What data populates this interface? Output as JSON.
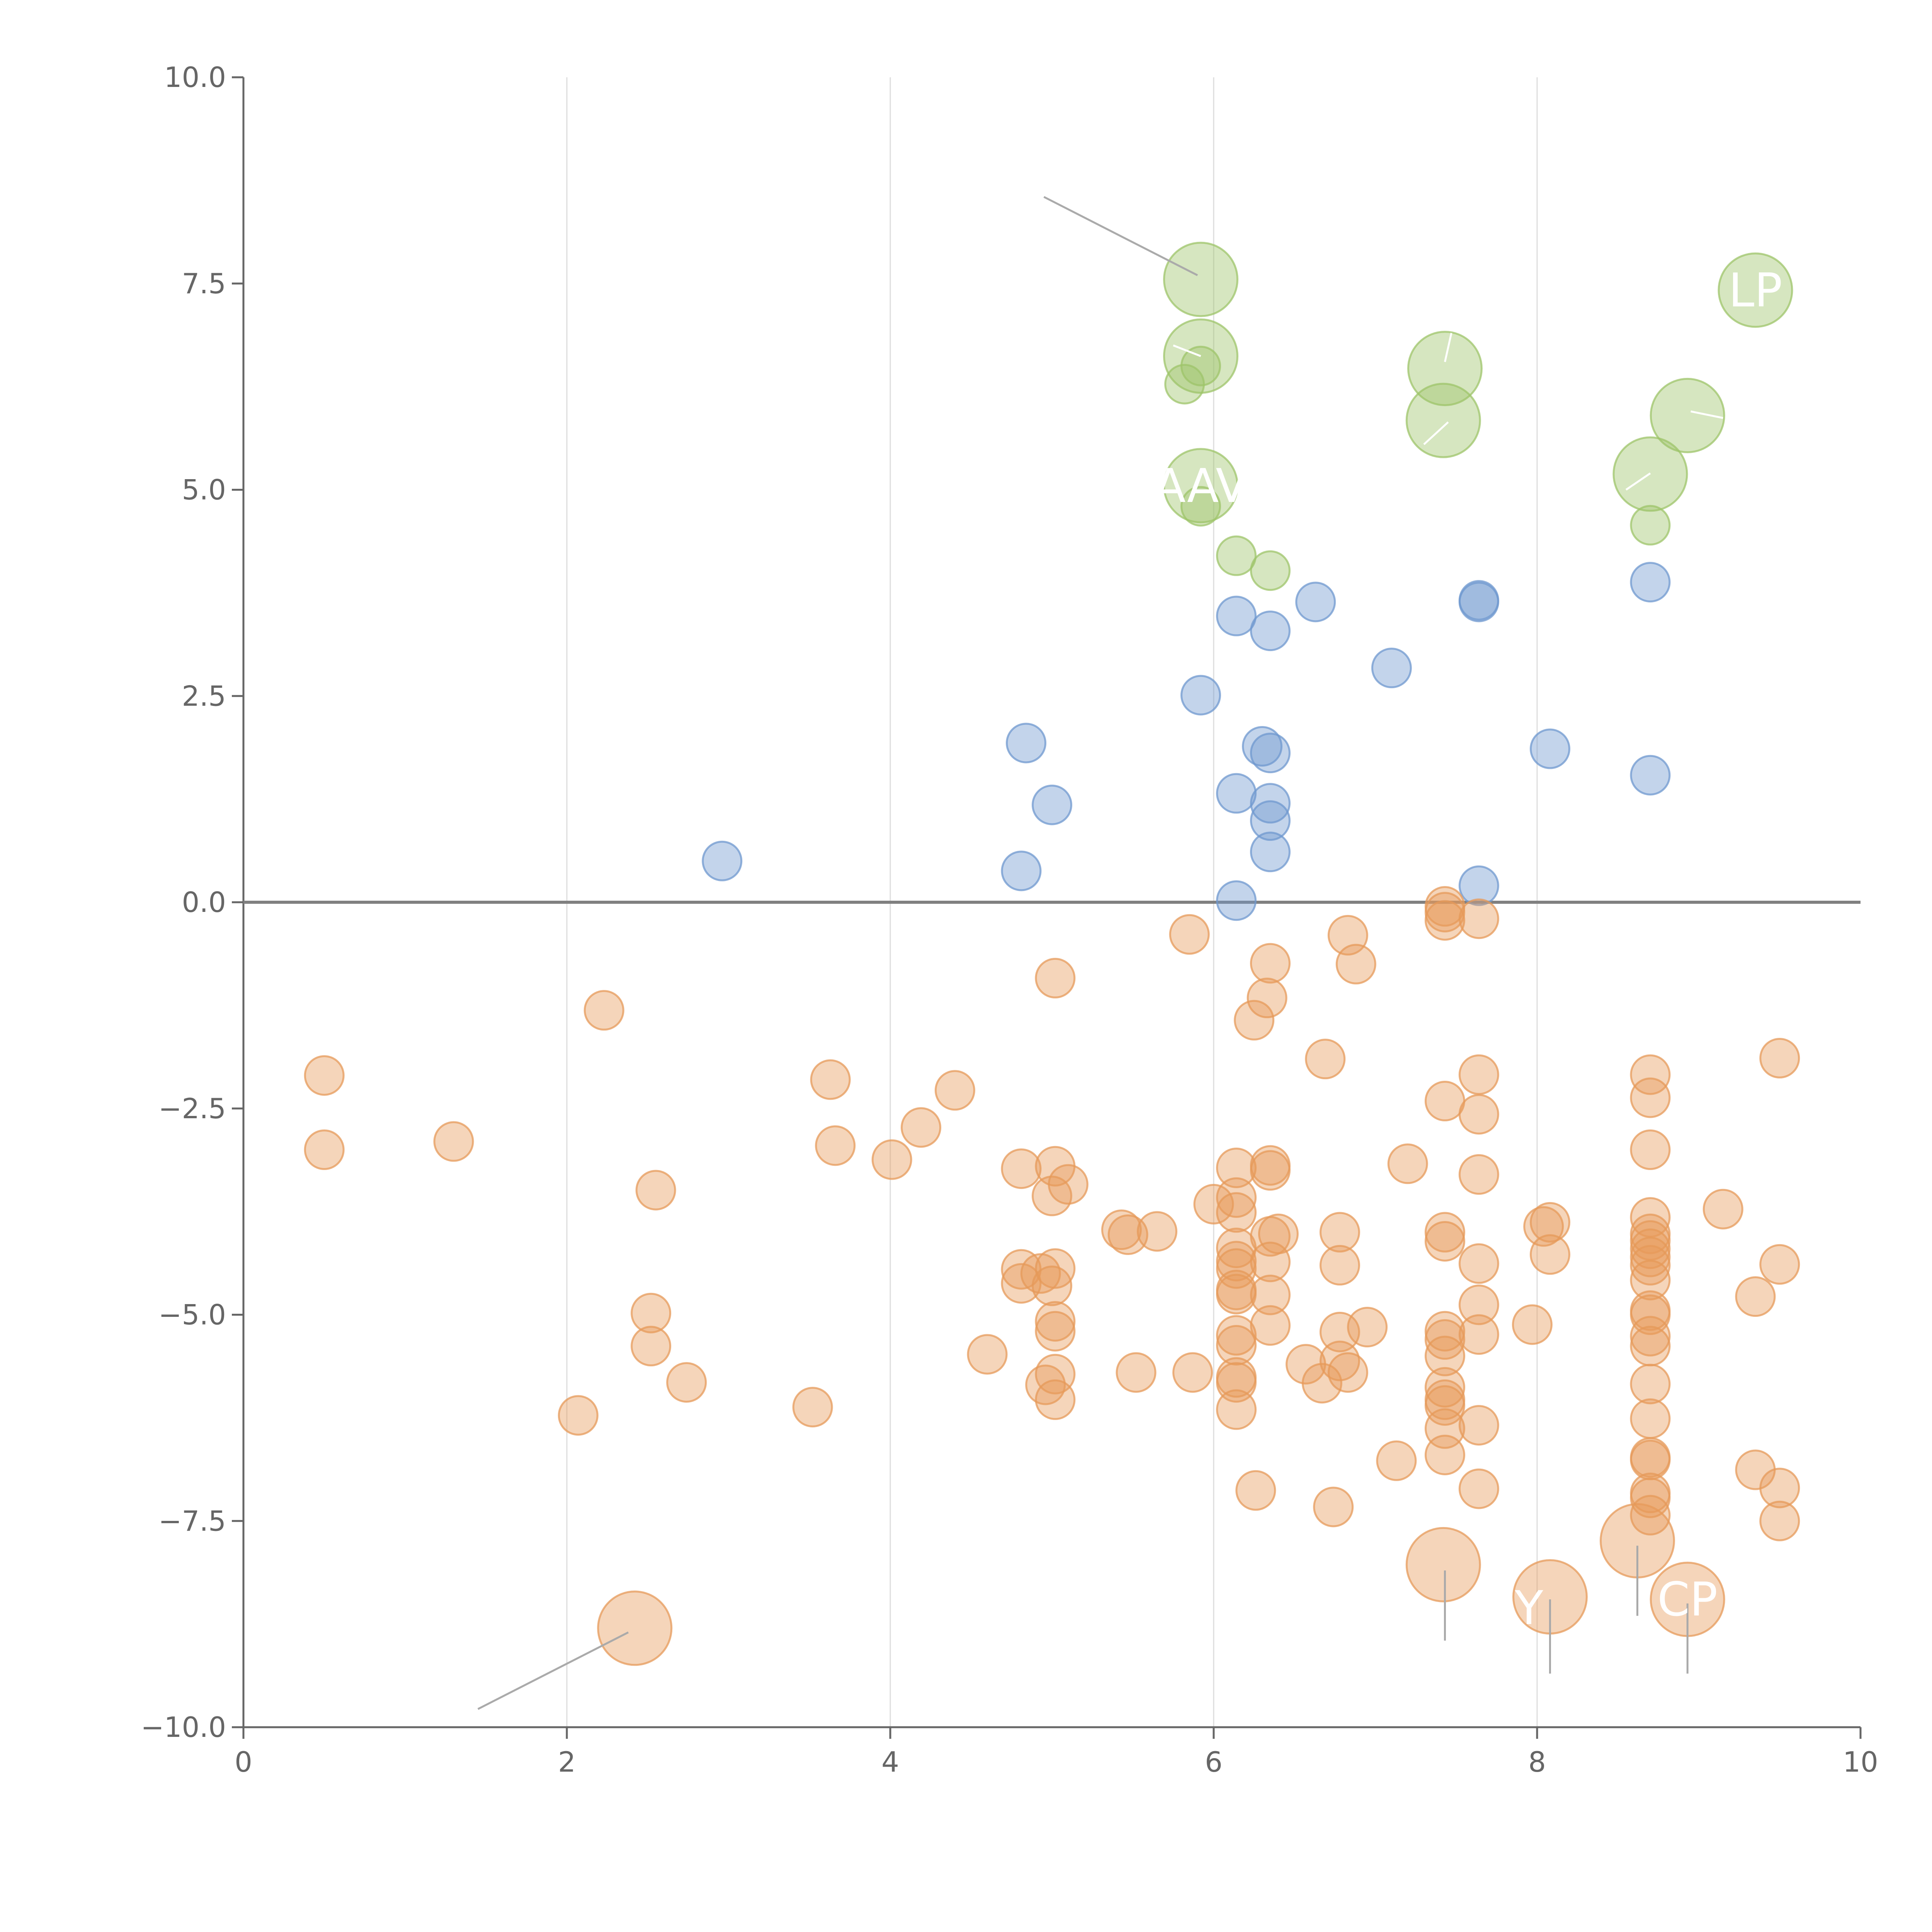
{
  "chart_data": {
    "type": "scatter",
    "title": "",
    "xlabel": "",
    "ylabel": "",
    "xlim": [
      0,
      10
    ],
    "ylim": [
      -10,
      10
    ],
    "x_ticks": [
      {
        "value": 0,
        "label": "0"
      },
      {
        "value": 2,
        "label": "2"
      },
      {
        "value": 4,
        "label": "4"
      },
      {
        "value": 6,
        "label": "6"
      },
      {
        "value": 8,
        "label": "8"
      },
      {
        "value": 10,
        "label": "10"
      }
    ],
    "y_ticks": [
      {
        "value": 10,
        "label": "10.0"
      },
      {
        "value": 7.5,
        "label": "7.5"
      },
      {
        "value": 5,
        "label": "5.0"
      },
      {
        "value": 2.5,
        "label": "2.5"
      },
      {
        "value": 0,
        "label": "0.0"
      },
      {
        "value": -2.5,
        "label": "−2.5"
      },
      {
        "value": -5,
        "label": "−5.0"
      },
      {
        "value": -7.5,
        "label": "−7.5"
      },
      {
        "value": -10,
        "label": "−10.0"
      }
    ],
    "vertical_grid_at": [
      2,
      4,
      6,
      8
    ],
    "reference_line_y": 0,
    "colors": {
      "green": "#9dc46a",
      "blue": "#6f98cf",
      "orange": "#e69a5a",
      "axis": "#666666",
      "grid": "#dddddd",
      "zero_line": "#808080",
      "leader": "#aaaaaa"
    },
    "series": [
      {
        "name": "green",
        "color": "#9dc46a",
        "points": [
          {
            "x": 5.92,
            "y": 7.55,
            "size": "large"
          },
          {
            "x": 5.92,
            "y": 6.62,
            "size": "large"
          },
          {
            "x": 5.92,
            "y": 6.5,
            "size": "small"
          },
          {
            "x": 5.82,
            "y": 6.28,
            "size": "small"
          },
          {
            "x": 5.92,
            "y": 5.05,
            "size": "large",
            "label": "AAV"
          },
          {
            "x": 5.92,
            "y": 4.8,
            "size": "small"
          },
          {
            "x": 6.14,
            "y": 4.2,
            "size": "small"
          },
          {
            "x": 6.35,
            "y": 4.02,
            "size": "small"
          },
          {
            "x": 7.43,
            "y": 6.47,
            "size": "large"
          },
          {
            "x": 7.42,
            "y": 5.84,
            "size": "large"
          },
          {
            "x": 8.93,
            "y": 5.9,
            "size": "large"
          },
          {
            "x": 8.7,
            "y": 5.19,
            "size": "large"
          },
          {
            "x": 8.7,
            "y": 4.57,
            "size": "small"
          },
          {
            "x": 9.35,
            "y": 7.42,
            "size": "large",
            "label": "LP"
          }
        ]
      },
      {
        "name": "blue",
        "color": "#6f98cf",
        "points": [
          {
            "x": 2.96,
            "y": 0.5
          },
          {
            "x": 4.81,
            "y": 0.38
          },
          {
            "x": 4.84,
            "y": 1.93
          },
          {
            "x": 5.0,
            "y": 1.18
          },
          {
            "x": 5.92,
            "y": 2.51
          },
          {
            "x": 6.14,
            "y": 3.47
          },
          {
            "x": 6.35,
            "y": 3.29
          },
          {
            "x": 6.63,
            "y": 3.64
          },
          {
            "x": 7.1,
            "y": 2.84
          },
          {
            "x": 7.64,
            "y": 3.66
          },
          {
            "x": 7.64,
            "y": 3.64
          },
          {
            "x": 6.14,
            "y": 1.32
          },
          {
            "x": 6.3,
            "y": 1.89
          },
          {
            "x": 6.35,
            "y": 1.81
          },
          {
            "x": 6.35,
            "y": 1.2
          },
          {
            "x": 6.35,
            "y": 0.99
          },
          {
            "x": 6.35,
            "y": 0.61
          },
          {
            "x": 6.14,
            "y": 0.02
          },
          {
            "x": 7.64,
            "y": 0.2
          },
          {
            "x": 8.08,
            "y": 1.86
          },
          {
            "x": 8.7,
            "y": 1.54
          },
          {
            "x": 8.7,
            "y": 3.88
          }
        ]
      },
      {
        "name": "orange",
        "color": "#e69a5a",
        "points": [
          {
            "x": 0.5,
            "y": -2.1
          },
          {
            "x": 0.5,
            "y": -3.0
          },
          {
            "x": 1.3,
            "y": -2.9
          },
          {
            "x": 2.23,
            "y": -1.31
          },
          {
            "x": 2.55,
            "y": -3.49
          },
          {
            "x": 2.52,
            "y": -4.98
          },
          {
            "x": 2.52,
            "y": -5.38
          },
          {
            "x": 2.74,
            "y": -5.82
          },
          {
            "x": 2.07,
            "y": -6.22
          },
          {
            "x": 2.42,
            "y": -8.8,
            "size": "large"
          },
          {
            "x": 3.52,
            "y": -6.12
          },
          {
            "x": 3.63,
            "y": -2.15
          },
          {
            "x": 3.66,
            "y": -2.95
          },
          {
            "x": 4.01,
            "y": -3.12
          },
          {
            "x": 4.19,
            "y": -2.73
          },
          {
            "x": 4.4,
            "y": -2.28
          },
          {
            "x": 4.6,
            "y": -5.48
          },
          {
            "x": 4.81,
            "y": -3.23
          },
          {
            "x": 4.81,
            "y": -4.45
          },
          {
            "x": 4.81,
            "y": -4.62
          },
          {
            "x": 4.93,
            "y": -4.5
          },
          {
            "x": 4.96,
            "y": -5.85
          },
          {
            "x": 5.02,
            "y": -0.92
          },
          {
            "x": 5.02,
            "y": -3.2
          },
          {
            "x": 5.0,
            "y": -3.56
          },
          {
            "x": 5.1,
            "y": -3.42
          },
          {
            "x": 5.02,
            "y": -4.44
          },
          {
            "x": 5.0,
            "y": -4.65
          },
          {
            "x": 5.02,
            "y": -5.08
          },
          {
            "x": 5.02,
            "y": -5.2
          },
          {
            "x": 5.02,
            "y": -5.72
          },
          {
            "x": 5.02,
            "y": -6.03
          },
          {
            "x": 5.43,
            "y": -3.97
          },
          {
            "x": 5.47,
            "y": -4.03
          },
          {
            "x": 5.52,
            "y": -5.7
          },
          {
            "x": 5.65,
            "y": -3.99
          },
          {
            "x": 5.85,
            "y": -0.39
          },
          {
            "x": 5.87,
            "y": -5.7
          },
          {
            "x": 6.0,
            "y": -3.66
          },
          {
            "x": 6.14,
            "y": -3.22
          },
          {
            "x": 6.14,
            "y": -3.58
          },
          {
            "x": 6.14,
            "y": -3.76
          },
          {
            "x": 6.14,
            "y": -4.19
          },
          {
            "x": 6.14,
            "y": -4.35
          },
          {
            "x": 6.14,
            "y": -4.44
          },
          {
            "x": 6.14,
            "y": -4.7
          },
          {
            "x": 6.14,
            "y": -4.75
          },
          {
            "x": 6.14,
            "y": -5.25
          },
          {
            "x": 6.14,
            "y": -5.37
          },
          {
            "x": 6.14,
            "y": -5.76
          },
          {
            "x": 6.14,
            "y": -5.82
          },
          {
            "x": 6.14,
            "y": -6.15
          },
          {
            "x": 6.25,
            "y": -1.43
          },
          {
            "x": 6.26,
            "y": -7.13
          },
          {
            "x": 6.35,
            "y": -0.74
          },
          {
            "x": 6.33,
            "y": -1.16
          },
          {
            "x": 6.35,
            "y": -3.19
          },
          {
            "x": 6.35,
            "y": -3.25
          },
          {
            "x": 6.35,
            "y": -4.05
          },
          {
            "x": 6.4,
            "y": -4.02
          },
          {
            "x": 6.35,
            "y": -4.36
          },
          {
            "x": 6.35,
            "y": -4.76
          },
          {
            "x": 6.35,
            "y": -5.13
          },
          {
            "x": 6.57,
            "y": -5.6
          },
          {
            "x": 6.67,
            "y": -5.83
          },
          {
            "x": 6.69,
            "y": -1.9
          },
          {
            "x": 6.74,
            "y": -7.33
          },
          {
            "x": 6.78,
            "y": -4.0
          },
          {
            "x": 6.78,
            "y": -4.4
          },
          {
            "x": 6.78,
            "y": -5.21
          },
          {
            "x": 6.78,
            "y": -5.56
          },
          {
            "x": 6.83,
            "y": -5.7
          },
          {
            "x": 6.83,
            "y": -0.4
          },
          {
            "x": 6.88,
            "y": -0.75
          },
          {
            "x": 6.95,
            "y": -5.15
          },
          {
            "x": 7.13,
            "y": -6.77
          },
          {
            "x": 7.2,
            "y": -3.17
          },
          {
            "x": 7.43,
            "y": -0.05
          },
          {
            "x": 7.43,
            "y": -0.12
          },
          {
            "x": 7.43,
            "y": -0.22
          },
          {
            "x": 7.43,
            "y": -2.41
          },
          {
            "x": 7.43,
            "y": -4.0
          },
          {
            "x": 7.43,
            "y": -4.11
          },
          {
            "x": 7.43,
            "y": -5.2
          },
          {
            "x": 7.43,
            "y": -5.3
          },
          {
            "x": 7.43,
            "y": -5.5
          },
          {
            "x": 7.43,
            "y": -5.88
          },
          {
            "x": 7.43,
            "y": -6.03
          },
          {
            "x": 7.43,
            "y": -6.1
          },
          {
            "x": 7.43,
            "y": -6.38
          },
          {
            "x": 7.43,
            "y": -6.7
          },
          {
            "x": 7.42,
            "y": -8.03,
            "size": "large"
          },
          {
            "x": 7.64,
            "y": -0.2
          },
          {
            "x": 7.64,
            "y": -2.09
          },
          {
            "x": 7.64,
            "y": -2.57
          },
          {
            "x": 7.64,
            "y": -3.3
          },
          {
            "x": 7.64,
            "y": -4.38
          },
          {
            "x": 7.64,
            "y": -4.88
          },
          {
            "x": 7.64,
            "y": -5.24
          },
          {
            "x": 7.64,
            "y": -6.34
          },
          {
            "x": 7.64,
            "y": -7.11
          },
          {
            "x": 7.97,
            "y": -5.12
          },
          {
            "x": 8.04,
            "y": -3.93
          },
          {
            "x": 8.08,
            "y": -3.88
          },
          {
            "x": 8.08,
            "y": -4.27
          },
          {
            "x": 8.08,
            "y": -8.42,
            "size": "large"
          },
          {
            "x": 8.62,
            "y": -7.74,
            "size": "large"
          },
          {
            "x": 8.7,
            "y": -2.09
          },
          {
            "x": 8.7,
            "y": -2.37
          },
          {
            "x": 8.7,
            "y": -3.0
          },
          {
            "x": 8.7,
            "y": -3.82
          },
          {
            "x": 8.7,
            "y": -4.02
          },
          {
            "x": 8.7,
            "y": -4.1
          },
          {
            "x": 8.7,
            "y": -4.2
          },
          {
            "x": 8.7,
            "y": -4.3
          },
          {
            "x": 8.7,
            "y": -4.4
          },
          {
            "x": 8.7,
            "y": -4.58
          },
          {
            "x": 8.7,
            "y": -4.95
          },
          {
            "x": 8.7,
            "y": -5.0
          },
          {
            "x": 8.7,
            "y": -5.26
          },
          {
            "x": 8.7,
            "y": -5.38
          },
          {
            "x": 8.7,
            "y": -5.84
          },
          {
            "x": 8.7,
            "y": -6.26
          },
          {
            "x": 8.7,
            "y": -6.73
          },
          {
            "x": 8.7,
            "y": -6.76
          },
          {
            "x": 8.7,
            "y": -7.16
          },
          {
            "x": 8.7,
            "y": -7.22
          },
          {
            "x": 8.7,
            "y": -7.43
          },
          {
            "x": 8.93,
            "y": -8.45,
            "size": "large",
            "label": "CP"
          },
          {
            "x": 9.15,
            "y": -3.72
          },
          {
            "x": 9.35,
            "y": -4.78
          },
          {
            "x": 9.35,
            "y": -6.88
          },
          {
            "x": 9.5,
            "y": -1.89
          },
          {
            "x": 9.5,
            "y": -4.39
          },
          {
            "x": 9.5,
            "y": -7.1
          },
          {
            "x": 9.5,
            "y": -7.5
          }
        ]
      }
    ],
    "partial_labels": [
      {
        "text": "Y",
        "x": 7.95,
        "y": -8.75
      }
    ],
    "leader_lines": [
      {
        "color": "grey",
        "x1": 4.95,
        "y1": 8.55,
        "x2": 5.9,
        "y2": 7.6
      },
      {
        "color": "grey",
        "x1": 1.45,
        "y1": -9.78,
        "x2": 2.38,
        "y2": -8.85
      },
      {
        "color": "grey",
        "x1": 7.43,
        "y1": -8.1,
        "x2": 7.43,
        "y2": -8.95
      },
      {
        "color": "grey",
        "x1": 8.08,
        "y1": -8.45,
        "x2": 8.08,
        "y2": -9.35
      },
      {
        "color": "grey",
        "x1": 8.62,
        "y1": -7.8,
        "x2": 8.62,
        "y2": -8.65
      },
      {
        "color": "grey",
        "x1": 8.93,
        "y1": -8.5,
        "x2": 8.93,
        "y2": -9.35
      },
      {
        "color": "white",
        "x1": 7.43,
        "y1": 6.55,
        "x2": 7.47,
        "y2": 6.9
      },
      {
        "color": "white",
        "x1": 7.45,
        "y1": 5.82,
        "x2": 7.3,
        "y2": 5.55
      },
      {
        "color": "white",
        "x1": 8.95,
        "y1": 5.95,
        "x2": 9.15,
        "y2": 5.87
      },
      {
        "color": "white",
        "x1": 8.7,
        "y1": 5.2,
        "x2": 8.55,
        "y2": 5.0
      },
      {
        "color": "white",
        "x1": 5.92,
        "y1": 6.62,
        "x2": 5.75,
        "y2": 6.75
      }
    ]
  }
}
